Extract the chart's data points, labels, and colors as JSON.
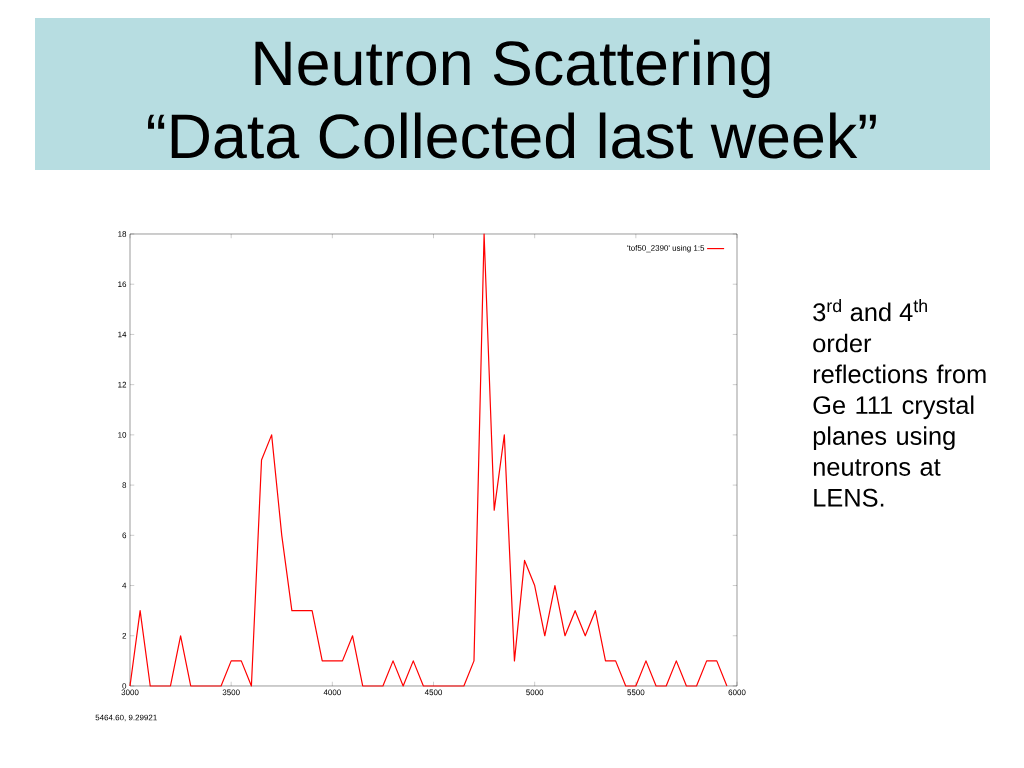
{
  "chart_data": {
    "type": "line",
    "title": "Neutron Scattering",
    "subtitle": "“Data Collected last week”",
    "annotations": [
      "3$^{rd}$ and 4$^{th}$",
      "order reflections from Ge 111 crystal planes using neutrons at LENS.",
      "5464.60, 9.29921"
    ],
    "x": [
      3000,
      3050,
      3100,
      3150,
      3200,
      3250,
      3300,
      3350,
      3400,
      3450,
      3500,
      3550,
      3600,
      3650,
      3700,
      3750,
      3800,
      3850,
      3900,
      3950,
      4000,
      4050,
      4100,
      4150,
      4200,
      4250,
      4300,
      4350,
      4400,
      4450,
      4500,
      4550,
      4600,
      4650,
      4700,
      4750,
      4800,
      4850,
      4900,
      4950,
      5000,
      5050,
      5100,
      5150,
      5200,
      5250,
      5300,
      5350,
      5400,
      5450,
      5500,
      5550,
      5600,
      5650,
      5700,
      5750,
      5800,
      5850,
      5900,
      5950
    ],
    "series": [
      {
        "name": "'tof50_2390' using 1:5",
        "color": "#ff0000",
        "values": [
          0,
          3,
          0,
          0,
          0,
          2,
          0,
          0,
          0,
          0,
          1,
          1,
          0,
          9,
          10,
          6,
          3,
          3,
          3,
          1,
          1,
          1,
          2,
          0,
          0,
          0,
          1,
          0,
          1,
          0,
          0,
          0,
          0,
          0,
          1,
          18,
          7,
          10,
          1,
          5,
          4,
          2,
          4,
          2,
          3,
          2,
          3,
          1,
          1,
          0,
          0,
          1,
          0,
          0,
          1,
          0,
          0,
          1,
          1,
          0
        ]
      }
    ],
    "xlim": [
      3000,
      6000
    ],
    "ylim": [
      0,
      18
    ],
    "xticks": [
      3000,
      3500,
      4000,
      4500,
      5000,
      5500,
      6000
    ],
    "yticks": [
      0,
      2,
      4,
      6,
      8,
      10,
      12,
      14,
      16,
      18
    ],
    "grid": false,
    "legend": "top right",
    "line_style": "solid"
  }
}
